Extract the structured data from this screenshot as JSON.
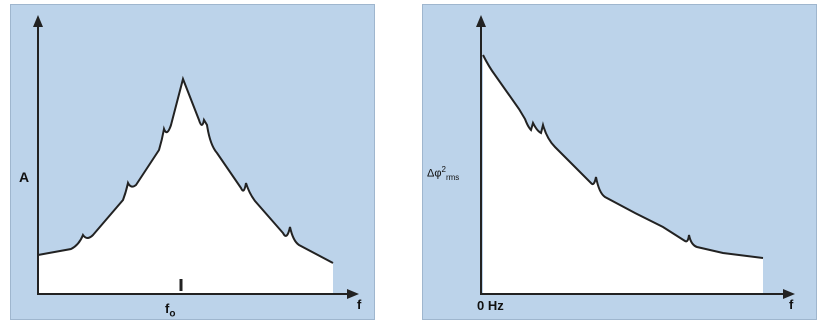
{
  "left_plot": {
    "y_label": "A",
    "x_label": "f",
    "center_label": "f",
    "center_subscript": "o"
  },
  "right_plot": {
    "y_label_symbol": "Δφ",
    "y_label_sup": "2",
    "y_label_sub": "rms",
    "x_label": "f",
    "origin_label": "0 Hz"
  },
  "colors": {
    "panel_background": "#bcd3ea",
    "area_fill": "#ffffff",
    "curve": "#222222"
  }
}
